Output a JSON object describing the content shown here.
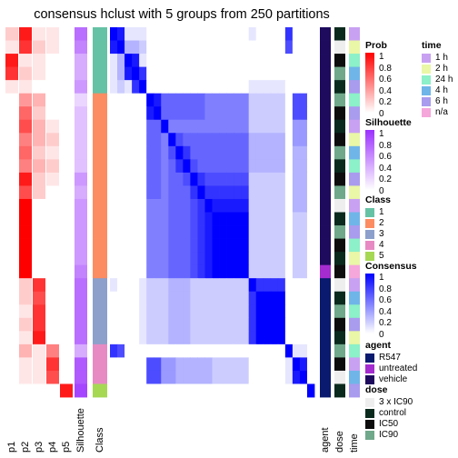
{
  "title": "consensus hclust with 5 groups from 250 partitions",
  "chart_data": {
    "type": "heatmap",
    "n_samples": 28,
    "left_columns": [
      "p1",
      "p2",
      "p3",
      "p4",
      "p5",
      "Silhouette",
      "Class"
    ],
    "right_columns": [
      "agent",
      "dose",
      "time"
    ],
    "class": [
      1,
      1,
      1,
      1,
      1,
      2,
      2,
      2,
      2,
      2,
      2,
      2,
      2,
      2,
      2,
      2,
      2,
      2,
      2,
      3,
      3,
      3,
      3,
      3,
      4,
      4,
      4,
      5
    ],
    "prob": [
      [
        0.2,
        0.9,
        0.1,
        0.1,
        0
      ],
      [
        0.1,
        0.8,
        0.2,
        0.1,
        0
      ],
      [
        0.9,
        0.1,
        0.1,
        0,
        0
      ],
      [
        0.8,
        0.2,
        0.1,
        0,
        0
      ],
      [
        0.1,
        0.1,
        0,
        0,
        0
      ],
      [
        0,
        0.4,
        0.3,
        0,
        0
      ],
      [
        0,
        0.6,
        0.2,
        0,
        0
      ],
      [
        0,
        0.7,
        0.3,
        0.1,
        0
      ],
      [
        0,
        0.5,
        0.3,
        0.2,
        0
      ],
      [
        0,
        0.6,
        0.2,
        0.1,
        0
      ],
      [
        0,
        0.5,
        0.3,
        0.2,
        0
      ],
      [
        0,
        0.9,
        0.2,
        0.1,
        0
      ],
      [
        0,
        0.7,
        0.2,
        0,
        0
      ],
      [
        0,
        1,
        0,
        0,
        0
      ],
      [
        0,
        1,
        0,
        0,
        0
      ],
      [
        0,
        1,
        0,
        0,
        0
      ],
      [
        0,
        1,
        0,
        0,
        0
      ],
      [
        0,
        1,
        0,
        0,
        0
      ],
      [
        0,
        1,
        0,
        0,
        0
      ],
      [
        0,
        0.2,
        0.8,
        0,
        0
      ],
      [
        0,
        0.2,
        0.7,
        0,
        0
      ],
      [
        0,
        0.1,
        0.8,
        0,
        0
      ],
      [
        0,
        0.2,
        0.8,
        0,
        0
      ],
      [
        0,
        0.1,
        0.9,
        0,
        0
      ],
      [
        0,
        0.3,
        0.1,
        0.5,
        0
      ],
      [
        0,
        0.1,
        0.1,
        0.8,
        0
      ],
      [
        0,
        0.1,
        0.1,
        0.7,
        0
      ],
      [
        0,
        0,
        0,
        0,
        0.9
      ]
    ],
    "silhouette": [
      0.7,
      0.6,
      0.4,
      0.4,
      0.5,
      0.2,
      0.3,
      0.3,
      0.3,
      0.3,
      0.3,
      0.5,
      0.4,
      0.5,
      0.5,
      0.5,
      0.5,
      0.5,
      0.6,
      0.7,
      0.7,
      0.7,
      0.7,
      0.7,
      0.4,
      0.8,
      0.8,
      0.9
    ],
    "consensus": [
      [
        1,
        0.9,
        0.1,
        0.1,
        0.1,
        0,
        0,
        0,
        0,
        0,
        0,
        0,
        0,
        0,
        0,
        0,
        0,
        0,
        0,
        0.1,
        0,
        0,
        0,
        0,
        0.8,
        0,
        0,
        0
      ],
      [
        0.9,
        1,
        0.3,
        0.3,
        0.2,
        0,
        0,
        0,
        0,
        0,
        0,
        0,
        0,
        0,
        0,
        0,
        0,
        0,
        0,
        0,
        0,
        0,
        0,
        0,
        0.7,
        0,
        0,
        0
      ],
      [
        0.1,
        0.3,
        1,
        0.9,
        0.1,
        0,
        0,
        0,
        0,
        0,
        0,
        0,
        0,
        0,
        0,
        0,
        0,
        0,
        0,
        0,
        0,
        0,
        0,
        0,
        0,
        0,
        0,
        0
      ],
      [
        0.1,
        0.3,
        0.9,
        1,
        0.8,
        0,
        0,
        0,
        0,
        0,
        0,
        0,
        0,
        0,
        0,
        0,
        0,
        0,
        0,
        0,
        0,
        0,
        0,
        0,
        0,
        0,
        0,
        0
      ],
      [
        0.1,
        0.2,
        0.1,
        0.8,
        1,
        0,
        0,
        0,
        0,
        0,
        0,
        0,
        0,
        0,
        0,
        0,
        0,
        0,
        0,
        0.1,
        0.1,
        0.1,
        0.1,
        0.1,
        0,
        0,
        0,
        0
      ],
      [
        0,
        0,
        0,
        0,
        0,
        1,
        0.9,
        0.6,
        0.6,
        0.6,
        0.6,
        0.6,
        0.6,
        0.5,
        0.5,
        0.5,
        0.5,
        0.5,
        0.5,
        0.2,
        0.2,
        0.2,
        0.2,
        0.2,
        0,
        0.7,
        0.7,
        0
      ],
      [
        0,
        0,
        0,
        0,
        0,
        0.9,
        1,
        0.6,
        0.6,
        0.6,
        0.6,
        0.6,
        0.6,
        0.5,
        0.5,
        0.5,
        0.5,
        0.5,
        0.5,
        0.2,
        0.2,
        0.2,
        0.2,
        0.2,
        0,
        0.7,
        0.7,
        0
      ],
      [
        0,
        0,
        0,
        0,
        0,
        0.6,
        0.6,
        1,
        0.5,
        0.5,
        0.5,
        0.5,
        0.5,
        0.5,
        0.5,
        0.5,
        0.5,
        0.5,
        0.5,
        0.2,
        0.2,
        0.2,
        0.2,
        0.2,
        0,
        0.4,
        0.4,
        0
      ],
      [
        0,
        0,
        0,
        0,
        0,
        0.6,
        0.6,
        0.5,
        1,
        0.7,
        0.6,
        0.6,
        0.6,
        0.6,
        0.6,
        0.6,
        0.6,
        0.6,
        0.6,
        0.3,
        0.3,
        0.3,
        0.3,
        0.3,
        0,
        0.4,
        0.4,
        0
      ],
      [
        0,
        0,
        0,
        0,
        0,
        0.6,
        0.6,
        0.5,
        0.7,
        1,
        0.8,
        0.6,
        0.6,
        0.6,
        0.6,
        0.6,
        0.6,
        0.6,
        0.6,
        0.3,
        0.3,
        0.3,
        0.3,
        0.3,
        0,
        0.3,
        0.3,
        0
      ],
      [
        0,
        0,
        0,
        0,
        0,
        0.6,
        0.6,
        0.5,
        0.6,
        0.8,
        1,
        0.7,
        0.6,
        0.6,
        0.6,
        0.6,
        0.6,
        0.6,
        0.6,
        0.3,
        0.3,
        0.3,
        0.3,
        0.3,
        0,
        0.3,
        0.3,
        0
      ],
      [
        0,
        0,
        0,
        0,
        0,
        0.6,
        0.6,
        0.5,
        0.6,
        0.6,
        0.7,
        1,
        0.8,
        0.7,
        0.7,
        0.7,
        0.7,
        0.7,
        0.7,
        0.2,
        0.2,
        0.2,
        0.2,
        0.2,
        0,
        0.3,
        0.3,
        0
      ],
      [
        0,
        0,
        0,
        0,
        0,
        0.6,
        0.6,
        0.5,
        0.6,
        0.6,
        0.6,
        0.8,
        1,
        0.8,
        0.8,
        0.8,
        0.8,
        0.8,
        0.8,
        0.2,
        0.2,
        0.2,
        0.2,
        0.2,
        0,
        0.3,
        0.3,
        0
      ],
      [
        0,
        0,
        0,
        0,
        0,
        0.5,
        0.5,
        0.5,
        0.6,
        0.6,
        0.6,
        0.7,
        0.8,
        1,
        0.9,
        0.9,
        0.9,
        0.9,
        0.9,
        0.2,
        0.2,
        0.2,
        0.2,
        0.2,
        0,
        0.3,
        0.3,
        0
      ],
      [
        0,
        0,
        0,
        0,
        0,
        0.5,
        0.5,
        0.5,
        0.6,
        0.6,
        0.6,
        0.7,
        0.8,
        0.9,
        1,
        1,
        1,
        1,
        1,
        0.2,
        0.2,
        0.2,
        0.2,
        0.2,
        0,
        0.2,
        0.2,
        0
      ],
      [
        0,
        0,
        0,
        0,
        0,
        0.5,
        0.5,
        0.5,
        0.6,
        0.6,
        0.6,
        0.7,
        0.8,
        0.9,
        1,
        1,
        1,
        1,
        1,
        0.2,
        0.2,
        0.2,
        0.2,
        0.2,
        0,
        0.2,
        0.2,
        0
      ],
      [
        0,
        0,
        0,
        0,
        0,
        0.5,
        0.5,
        0.5,
        0.6,
        0.6,
        0.6,
        0.7,
        0.8,
        0.9,
        1,
        1,
        1,
        1,
        1,
        0.2,
        0.2,
        0.2,
        0.2,
        0.2,
        0,
        0.2,
        0.2,
        0
      ],
      [
        0,
        0,
        0,
        0,
        0,
        0.5,
        0.5,
        0.5,
        0.6,
        0.6,
        0.6,
        0.7,
        0.8,
        0.9,
        1,
        1,
        1,
        1,
        1,
        0.2,
        0.2,
        0.2,
        0.2,
        0.2,
        0,
        0.2,
        0.2,
        0
      ],
      [
        0,
        0,
        0,
        0,
        0,
        0.5,
        0.5,
        0.5,
        0.6,
        0.6,
        0.6,
        0.7,
        0.8,
        0.9,
        1,
        1,
        1,
        1,
        1,
        0.2,
        0.2,
        0.2,
        0.2,
        0.2,
        0,
        0.2,
        0.2,
        0
      ],
      [
        0.1,
        0,
        0,
        0,
        0.1,
        0.2,
        0.2,
        0.2,
        0.3,
        0.3,
        0.3,
        0.2,
        0.2,
        0.2,
        0.2,
        0.2,
        0.2,
        0.2,
        0.2,
        1,
        0.8,
        0.8,
        0.8,
        0.8,
        0,
        0,
        0,
        0
      ],
      [
        0,
        0,
        0,
        0,
        0.1,
        0.2,
        0.2,
        0.2,
        0.3,
        0.3,
        0.3,
        0.2,
        0.2,
        0.2,
        0.2,
        0.2,
        0.2,
        0.2,
        0.2,
        0.8,
        1,
        1,
        1,
        1,
        0,
        0,
        0,
        0
      ],
      [
        0,
        0,
        0,
        0,
        0.1,
        0.2,
        0.2,
        0.2,
        0.3,
        0.3,
        0.3,
        0.2,
        0.2,
        0.2,
        0.2,
        0.2,
        0.2,
        0.2,
        0.2,
        0.8,
        1,
        1,
        1,
        1,
        0,
        0,
        0,
        0
      ],
      [
        0,
        0,
        0,
        0,
        0.1,
        0.2,
        0.2,
        0.2,
        0.3,
        0.3,
        0.3,
        0.2,
        0.2,
        0.2,
        0.2,
        0.2,
        0.2,
        0.2,
        0.2,
        0.8,
        1,
        1,
        1,
        1,
        0,
        0,
        0,
        0
      ],
      [
        0,
        0,
        0,
        0,
        0.1,
        0.2,
        0.2,
        0.2,
        0.3,
        0.3,
        0.3,
        0.2,
        0.2,
        0.2,
        0.2,
        0.2,
        0.2,
        0.2,
        0.2,
        0.8,
        1,
        1,
        1,
        1,
        0,
        0,
        0,
        0
      ],
      [
        0.8,
        0.7,
        0,
        0,
        0,
        0,
        0,
        0,
        0,
        0,
        0,
        0,
        0,
        0,
        0,
        0,
        0,
        0,
        0,
        0,
        0,
        0,
        0,
        0,
        1,
        0.1,
        0.1,
        0
      ],
      [
        0,
        0,
        0,
        0,
        0,
        0.7,
        0.7,
        0.4,
        0.4,
        0.3,
        0.3,
        0.3,
        0.3,
        0.3,
        0.2,
        0.2,
        0.2,
        0.2,
        0.2,
        0,
        0,
        0,
        0,
        0,
        0.1,
        1,
        0.9,
        0
      ],
      [
        0,
        0,
        0,
        0,
        0,
        0.7,
        0.7,
        0.4,
        0.4,
        0.3,
        0.3,
        0.3,
        0.3,
        0.3,
        0.2,
        0.2,
        0.2,
        0.2,
        0.2,
        0,
        0,
        0,
        0,
        0,
        0.1,
        0.9,
        1,
        0
      ],
      [
        0,
        0,
        0,
        0,
        0,
        0,
        0,
        0,
        0,
        0,
        0,
        0,
        0,
        0,
        0,
        0,
        0,
        0,
        0,
        0,
        0,
        0,
        0,
        0,
        0,
        0,
        0,
        1
      ]
    ],
    "agent": [
      "vehicle",
      "vehicle",
      "vehicle",
      "vehicle",
      "vehicle",
      "vehicle",
      "vehicle",
      "vehicle",
      "vehicle",
      "vehicle",
      "vehicle",
      "vehicle",
      "vehicle",
      "vehicle",
      "vehicle",
      "vehicle",
      "vehicle",
      "vehicle",
      "untreated",
      "R547",
      "R547",
      "R547",
      "R547",
      "R547",
      "R547",
      "R547",
      "R547",
      "R547"
    ],
    "dose": [
      "control",
      "3 x IC90",
      "IC50",
      "IC90",
      "control",
      "IC90",
      "IC50",
      "control",
      "IC50",
      "IC90",
      "control",
      "IC50",
      "IC90",
      "3 x IC90",
      "control",
      "IC90",
      "IC50",
      "control",
      "IC50",
      "3 x IC90",
      "control",
      "IC90",
      "IC50",
      "control",
      "IC90",
      "IC50",
      "3 x IC90",
      "control"
    ],
    "time": [
      "1 h",
      "2 h",
      "24 h",
      "4 h",
      "6 h",
      "24 h",
      "6 h",
      "1 h",
      "2 h",
      "4 h",
      "24 h",
      "6 h",
      "2 h",
      "1 h",
      "4 h",
      "6 h",
      "24 h",
      "2 h",
      "n/a",
      "1 h",
      "4 h",
      "24 h",
      "6 h",
      "2 h",
      "24 h",
      "1 h",
      "4 h",
      "6 h"
    ],
    "legends": {
      "prob": {
        "title": "Prob",
        "ticks": [
          "1",
          "0.8",
          "0.6",
          "0.4",
          "0.2",
          "0"
        ]
      },
      "time": {
        "title": "time",
        "levels": [
          "1 h",
          "2 h",
          "24 h",
          "4 h",
          "6 h",
          "n/a"
        ]
      },
      "silhouette": {
        "title": "Silhouette",
        "ticks": [
          "1",
          "0.8",
          "0.6",
          "0.4",
          "0.2",
          "0"
        ]
      },
      "class": {
        "title": "Class",
        "levels": [
          "1",
          "2",
          "3",
          "4",
          "5"
        ]
      },
      "consensus": {
        "title": "Consensus",
        "ticks": [
          "1",
          "0.8",
          "0.6",
          "0.4",
          "0.2",
          "0"
        ]
      },
      "agent": {
        "title": "agent",
        "levels": [
          "R547",
          "untreated",
          "vehicle"
        ]
      },
      "dose": {
        "title": "dose",
        "levels": [
          "3 x IC90",
          "control",
          "IC50",
          "IC90"
        ]
      }
    },
    "colors": {
      "class": {
        "1": "#66C2A5",
        "2": "#FC8D62",
        "3": "#8DA0CB",
        "4": "#E78AC3",
        "5": "#A6D854"
      },
      "time": {
        "1 h": "#C9A1F2",
        "2 h": "#EAF7A6",
        "24 h": "#8CF0C8",
        "4 h": "#6FB5E8",
        "6 h": "#A99BEE",
        "n/a": "#F5A6DB"
      },
      "agent": {
        "R547": "#0A1A6E",
        "untreated": "#A52CCF",
        "vehicle": "#1E0B5E"
      },
      "dose": {
        "3 x IC90": "#EEEEEE",
        "control": "#0B2A1E",
        "IC50": "#0D0D0D",
        "IC90": "#6FA88A"
      },
      "prob_high": "#FF0000",
      "silhouette_high": "#9B30FF",
      "consensus_high": "#0000FF"
    }
  }
}
